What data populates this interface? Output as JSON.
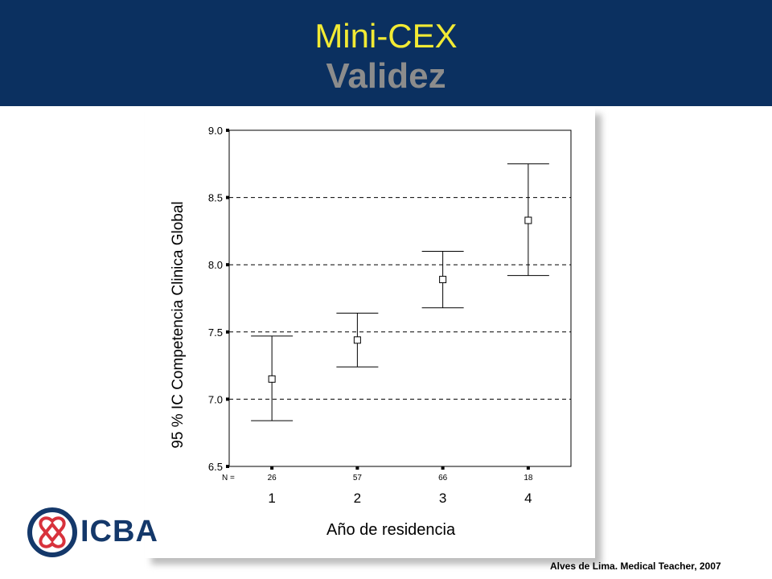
{
  "slide": {
    "title": "Mini-CEX",
    "subtitle": "Validez",
    "citation": "Alves de Lima. Medical Teacher, 2007",
    "logo_text": "ICBA"
  },
  "colors": {
    "header_bg": "#0b3060",
    "title": "#f2ea34",
    "subtitle": "#8c8c8c",
    "logo": "#14386a",
    "logo_accent": "#d8323c"
  },
  "chart_data": {
    "type": "scatter",
    "xlabel": "Año de residencia",
    "ylabel": "95 % IC Competencia Clinica Global",
    "ylim": [
      6.5,
      9.0
    ],
    "yticks": [
      "6.5",
      "7.0",
      "7.5",
      "8.0",
      "8.5",
      "9.0"
    ],
    "grid": [
      7.0,
      7.5,
      8.0,
      8.5
    ],
    "n_label": "N =",
    "categories": [
      "1",
      "2",
      "3",
      "4"
    ],
    "n": [
      "26",
      "57",
      "66",
      "18"
    ],
    "mean": [
      7.15,
      7.44,
      7.89,
      8.33
    ],
    "lower": [
      6.84,
      7.24,
      7.68,
      7.92
    ],
    "upper": [
      7.47,
      7.64,
      8.1,
      8.75
    ]
  }
}
